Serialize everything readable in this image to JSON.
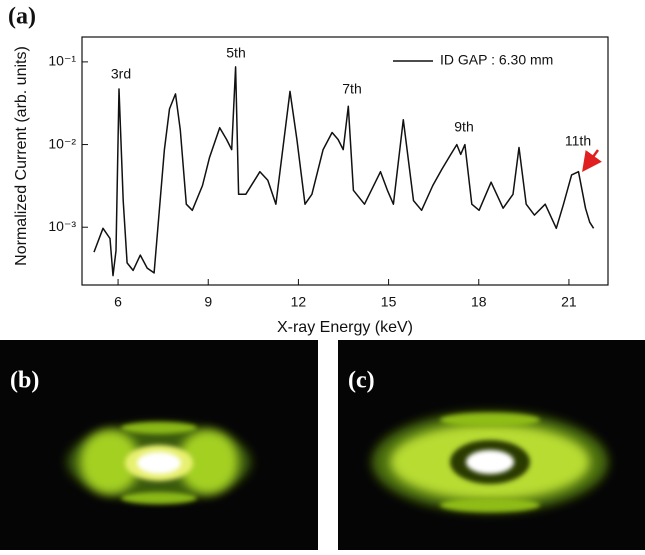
{
  "chart_data": {
    "type": "line",
    "panel_labels": [
      "(a)",
      "(b)",
      "(c)"
    ],
    "xlabel": "X-ray Energy (keV)",
    "ylabel": "Normalized Current (arb. units)",
    "x": [
      5.2,
      5.5,
      5.73,
      5.83,
      5.93,
      6.03,
      6.17,
      6.3,
      6.5,
      6.74,
      6.97,
      7.2,
      7.54,
      7.71,
      7.91,
      8.07,
      8.27,
      8.47,
      8.81,
      9.04,
      9.38,
      9.61,
      9.78,
      9.91,
      10.01,
      10.25,
      10.72,
      10.98,
      11.25,
      11.72,
      11.95,
      12.22,
      12.45,
      12.82,
      13.12,
      13.32,
      13.49,
      13.66,
      13.83,
      14.2,
      14.73,
      14.96,
      15.16,
      15.49,
      15.83,
      16.1,
      16.47,
      16.77,
      17.07,
      17.27,
      17.4,
      17.54,
      17.77,
      18.01,
      18.41,
      18.81,
      19.14,
      19.34,
      19.58,
      19.85,
      20.21,
      20.58,
      20.82,
      21.09,
      21.32,
      21.55,
      21.69,
      21.82
    ],
    "series": [
      {
        "name": "ID GAP : 6.30 mm",
        "color": "#111111",
        "values": [
          0.0005,
          0.00097,
          0.00073,
          0.00026,
          0.00052,
          0.047,
          0.0021,
          0.00037,
          0.0003,
          0.00046,
          0.00032,
          0.00028,
          0.0087,
          0.027,
          0.041,
          0.015,
          0.0019,
          0.0016,
          0.0032,
          0.0069,
          0.016,
          0.0115,
          0.0087,
          0.087,
          0.0025,
          0.0025,
          0.0047,
          0.0037,
          0.0019,
          0.044,
          0.0115,
          0.0019,
          0.0025,
          0.0087,
          0.014,
          0.0115,
          0.0087,
          0.029,
          0.0028,
          0.0019,
          0.0047,
          0.0028,
          0.0019,
          0.02,
          0.0021,
          0.0016,
          0.0032,
          0.005,
          0.0076,
          0.01,
          0.0076,
          0.01,
          0.0019,
          0.0016,
          0.0035,
          0.0017,
          0.0025,
          0.0092,
          0.0019,
          0.0014,
          0.0019,
          0.00097,
          0.0019,
          0.0043,
          0.0047,
          0.0017,
          0.00115,
          0.00097
        ]
      }
    ],
    "annotations": [
      "3rd",
      "5th",
      "7th",
      "9th",
      "11th"
    ],
    "xlim": [
      4.8,
      22.3
    ],
    "xticks": [
      6,
      9,
      12,
      15,
      18,
      21
    ],
    "ylim": [
      0.0002,
      0.2
    ],
    "log_y": true,
    "yticks": [
      {
        "value": 0.1,
        "label": "10⁻¹"
      },
      {
        "value": 0.01,
        "label": "10⁻²"
      },
      {
        "value": 0.001,
        "label": "10⁻³"
      }
    ],
    "legend": "upper right",
    "annotation_arrow_color": "#e02020"
  }
}
